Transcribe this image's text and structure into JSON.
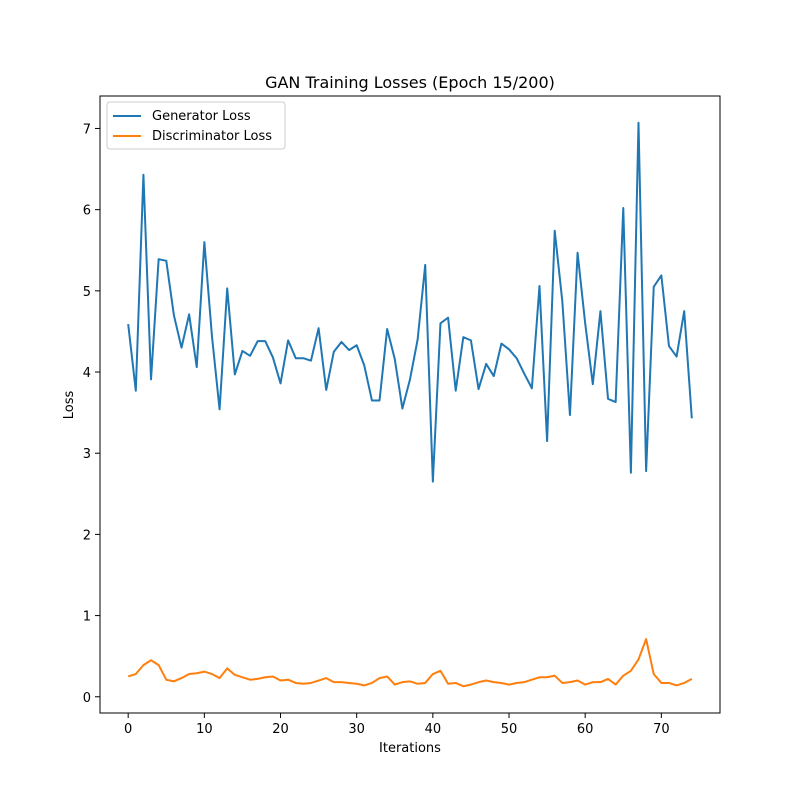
{
  "chart_data": {
    "type": "line",
    "title": "GAN Training Losses (Epoch 15/200)",
    "xlabel": "Iterations",
    "ylabel": "Loss",
    "xlim": [
      -3.7,
      77.7
    ],
    "ylim": [
      -0.2,
      7.4
    ],
    "xticks": [
      0,
      10,
      20,
      30,
      40,
      50,
      60,
      70
    ],
    "yticks": [
      0,
      1,
      2,
      3,
      4,
      5,
      6,
      7
    ],
    "grid": false,
    "legend_position": "top-left",
    "series": [
      {
        "name": "Generator Loss",
        "color": "#1f77b4",
        "values": [
          4.59,
          3.77,
          6.43,
          3.91,
          5.39,
          5.37,
          4.7,
          4.3,
          4.71,
          4.06,
          5.6,
          4.44,
          3.54,
          5.03,
          3.97,
          4.26,
          4.2,
          4.38,
          4.38,
          4.18,
          3.86,
          4.39,
          4.17,
          4.17,
          4.14,
          4.54,
          3.78,
          4.25,
          4.37,
          4.27,
          4.33,
          4.08,
          3.65,
          3.65,
          4.53,
          4.16,
          3.55,
          3.91,
          4.4,
          5.32,
          2.65,
          4.6,
          4.67,
          3.77,
          4.43,
          4.39,
          3.79,
          4.1,
          3.95,
          4.35,
          4.28,
          4.17,
          3.98,
          3.8,
          5.06,
          3.15,
          5.74,
          4.87,
          3.47,
          5.47,
          4.6,
          3.85,
          4.75,
          3.67,
          3.63,
          6.02,
          2.76,
          7.07,
          2.78,
          5.05,
          5.19,
          4.32,
          4.19,
          4.75,
          3.43
        ]
      },
      {
        "name": "Discriminator Loss",
        "color": "#ff7f0e",
        "values": [
          0.25,
          0.28,
          0.39,
          0.45,
          0.39,
          0.21,
          0.19,
          0.23,
          0.28,
          0.29,
          0.31,
          0.28,
          0.23,
          0.35,
          0.27,
          0.24,
          0.21,
          0.22,
          0.24,
          0.25,
          0.2,
          0.21,
          0.17,
          0.16,
          0.17,
          0.2,
          0.23,
          0.18,
          0.18,
          0.17,
          0.16,
          0.14,
          0.17,
          0.23,
          0.25,
          0.15,
          0.18,
          0.19,
          0.16,
          0.17,
          0.28,
          0.32,
          0.16,
          0.17,
          0.13,
          0.15,
          0.18,
          0.2,
          0.18,
          0.17,
          0.15,
          0.17,
          0.18,
          0.21,
          0.24,
          0.24,
          0.26,
          0.17,
          0.18,
          0.2,
          0.15,
          0.18,
          0.18,
          0.22,
          0.15,
          0.26,
          0.32,
          0.46,
          0.71,
          0.28,
          0.17,
          0.17,
          0.14,
          0.17,
          0.22
        ]
      }
    ]
  }
}
